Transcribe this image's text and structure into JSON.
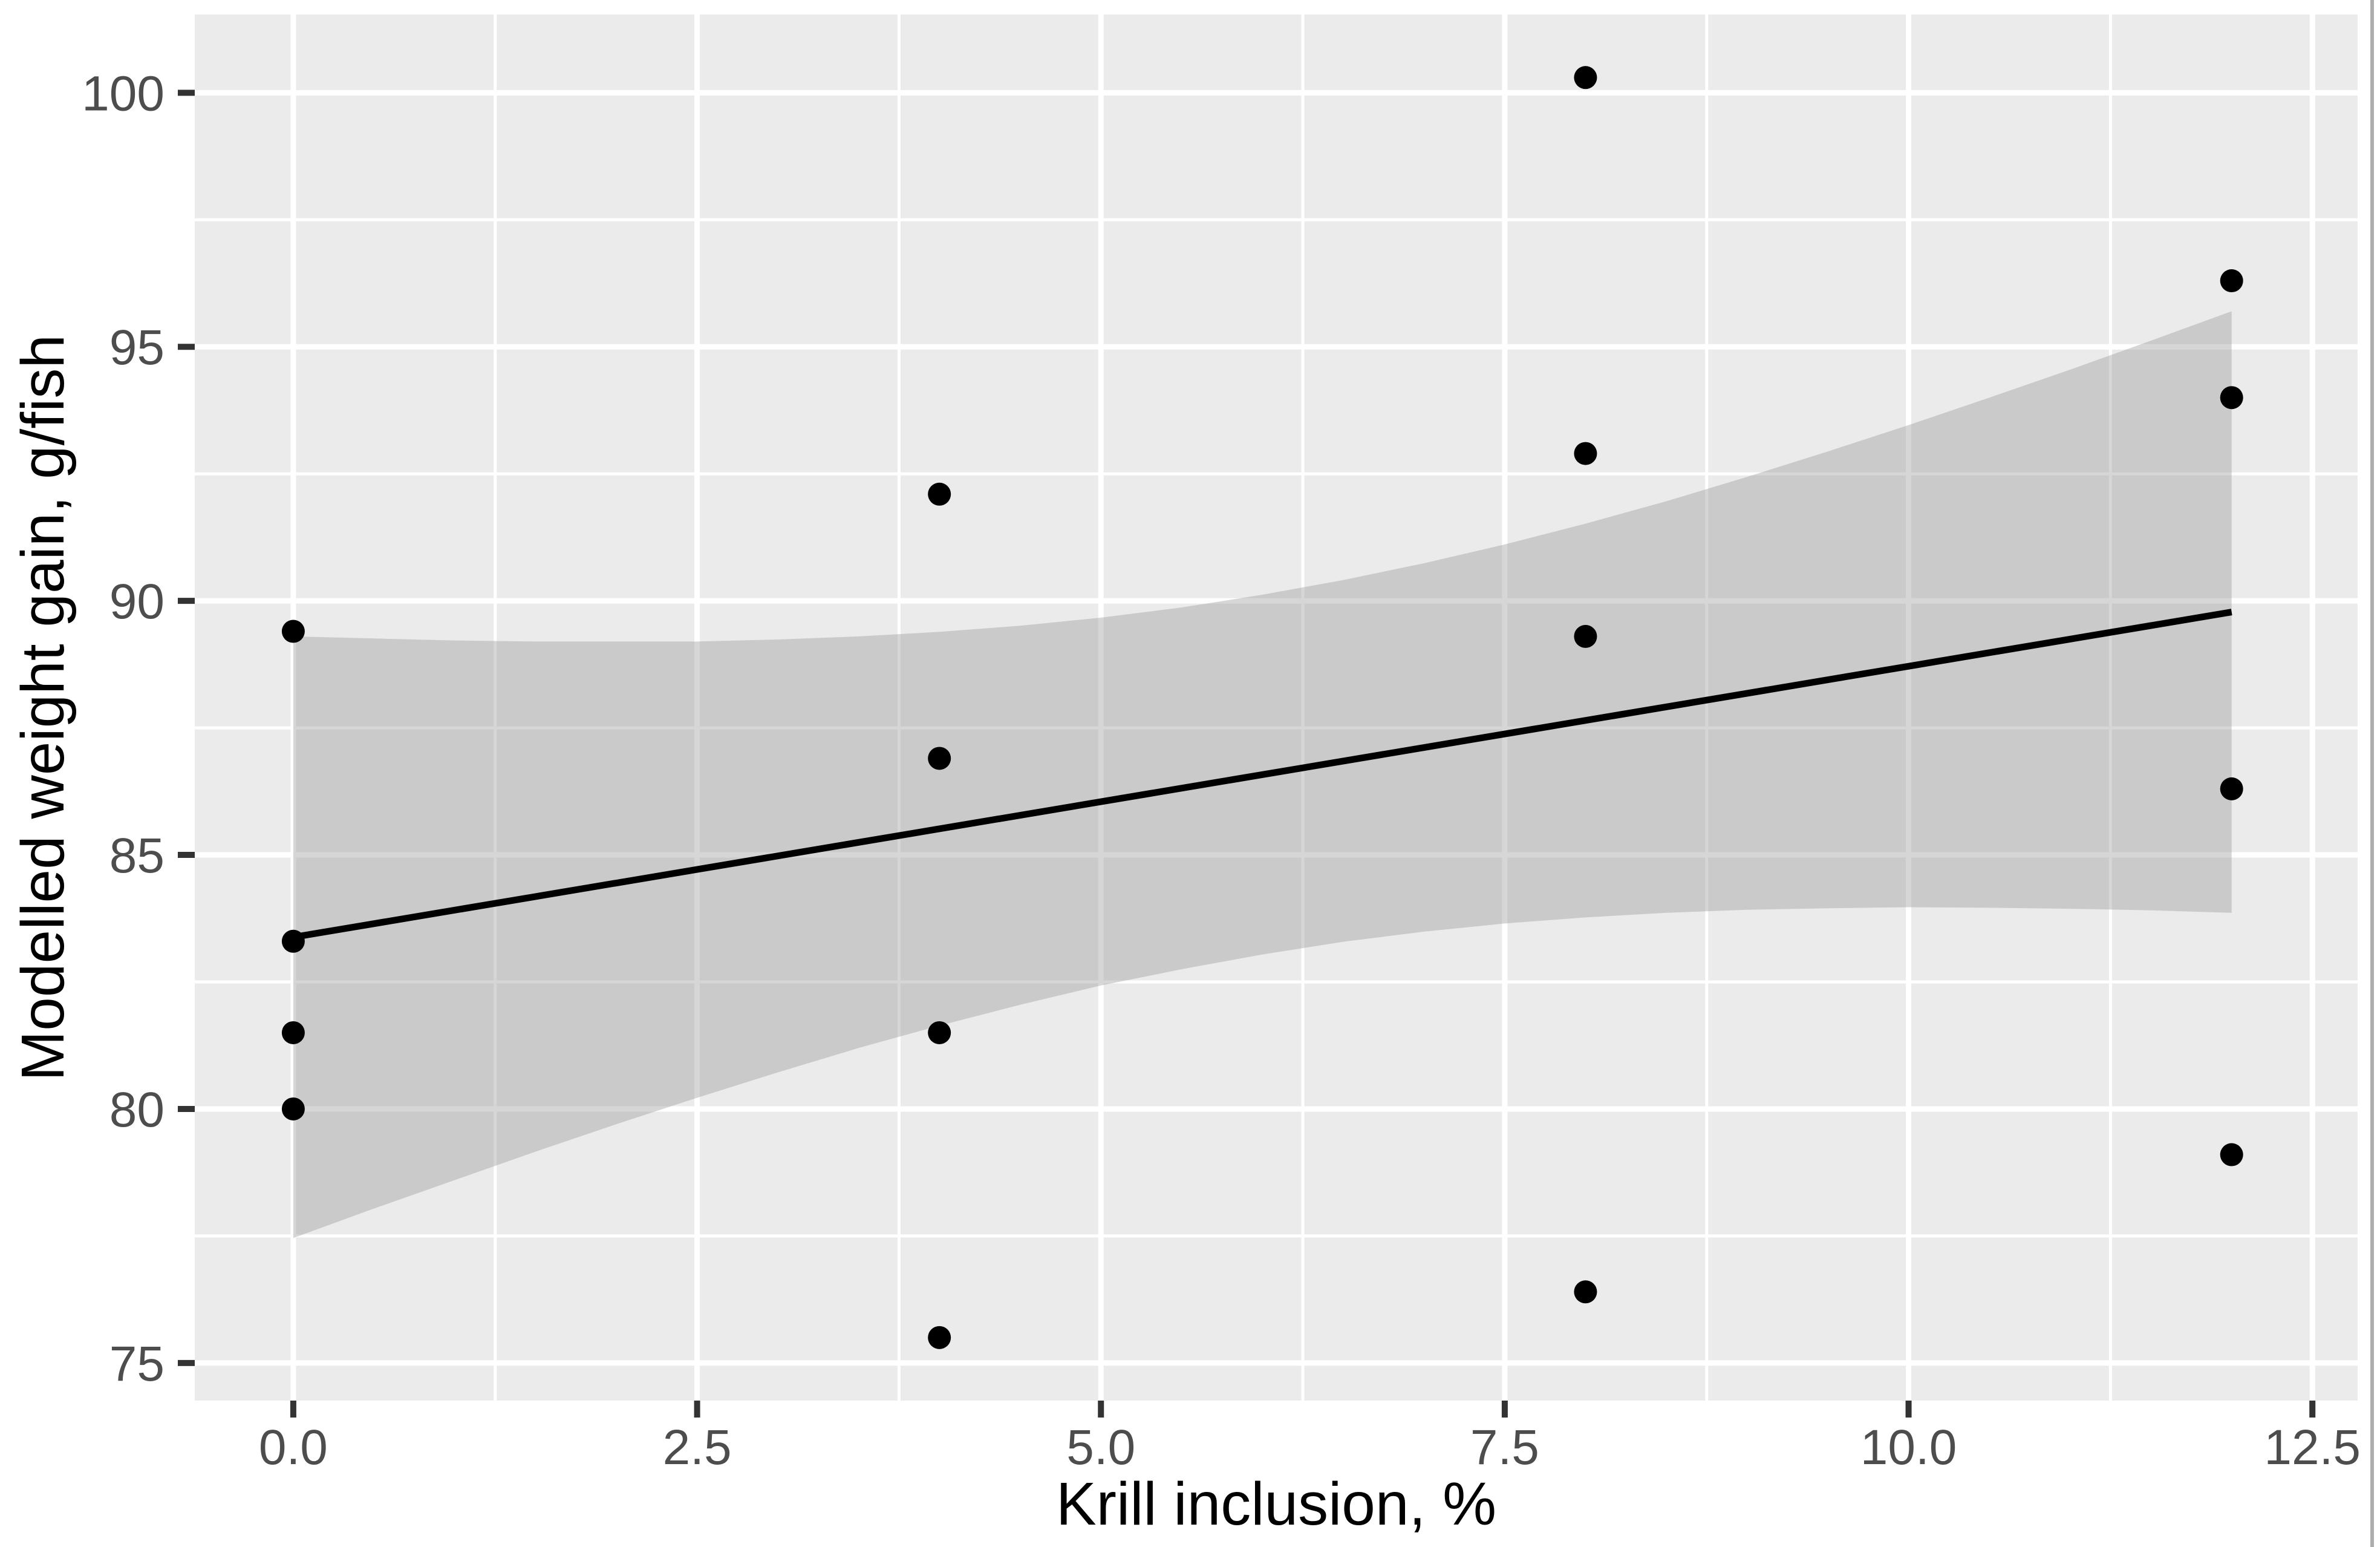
{
  "chart_data": {
    "type": "scatter",
    "title": "",
    "xlabel": "Krill inclusion, %",
    "ylabel": "Modelled weight gain, g/fish",
    "xlim": [
      -0.61,
      12.78
    ],
    "ylim": [
      74.26,
      101.54
    ],
    "grid": "on",
    "legend": "none",
    "x_tick_values": [
      0.0,
      2.5,
      5.0,
      7.5,
      10.0,
      12.5
    ],
    "x_tick_labels": [
      "0.0",
      "2.5",
      "5.0",
      "7.5",
      "10.0",
      "12.5"
    ],
    "y_tick_values": [
      75,
      80,
      85,
      90,
      95,
      100
    ],
    "y_tick_labels": [
      "75",
      "80",
      "85",
      "90",
      "95",
      "100"
    ],
    "x_minor_ticks": [
      1.25,
      3.75,
      6.25,
      8.75,
      11.25
    ],
    "y_minor_ticks": [
      77.5,
      82.5,
      87.5,
      92.5,
      97.5
    ],
    "points": [
      {
        "x": 0,
        "y": 89.4
      },
      {
        "x": 0,
        "y": 83.3
      },
      {
        "x": 0,
        "y": 81.5
      },
      {
        "x": 0,
        "y": 80.0
      },
      {
        "x": 4,
        "y": 92.1
      },
      {
        "x": 4,
        "y": 86.9
      },
      {
        "x": 4,
        "y": 81.5
      },
      {
        "x": 4,
        "y": 75.5
      },
      {
        "x": 8,
        "y": 100.3
      },
      {
        "x": 8,
        "y": 92.9
      },
      {
        "x": 8,
        "y": 89.3
      },
      {
        "x": 8,
        "y": 76.4
      },
      {
        "x": 12,
        "y": 96.3
      },
      {
        "x": 12,
        "y": 94.0
      },
      {
        "x": 12,
        "y": 86.3
      },
      {
        "x": 12,
        "y": 79.1
      }
    ],
    "regression_line": {
      "x1": 0,
      "y1": 83.38,
      "x2": 12,
      "y2": 89.78
    },
    "ci_band": {
      "x": [
        0,
        0.5,
        1,
        1.5,
        2,
        2.5,
        3,
        3.5,
        4,
        4.5,
        5,
        5.5,
        6,
        6.5,
        7,
        7.5,
        8,
        8.5,
        9,
        9.5,
        10,
        10.5,
        11,
        11.5,
        12
      ],
      "upper": [
        89.3,
        89.26,
        89.22,
        89.2,
        89.2,
        89.2,
        89.24,
        89.3,
        89.39,
        89.51,
        89.67,
        89.87,
        90.12,
        90.41,
        90.74,
        91.11,
        91.52,
        91.96,
        92.44,
        92.94,
        93.46,
        94.0,
        94.55,
        95.12,
        95.7
      ],
      "lower": [
        77.46,
        78.04,
        78.6,
        79.16,
        79.7,
        80.22,
        80.72,
        81.2,
        81.64,
        82.05,
        82.43,
        82.75,
        83.04,
        83.29,
        83.49,
        83.65,
        83.77,
        83.86,
        83.92,
        83.95,
        83.97,
        83.96,
        83.94,
        83.91,
        83.86
      ]
    },
    "colors": {
      "panel_background": "#EBEBEB",
      "gridline": "#FFFFFF",
      "ci_band_fill": "#999999",
      "ci_band_opacity": 0.4,
      "regression_line": "#000000",
      "point_fill": "#000000",
      "tick_mark": "#333333",
      "tick_label": "#4D4D4D",
      "axis_title": "#000000",
      "figure_background": "#FFFFFF",
      "right_edge_line": "#ADADAD"
    }
  }
}
